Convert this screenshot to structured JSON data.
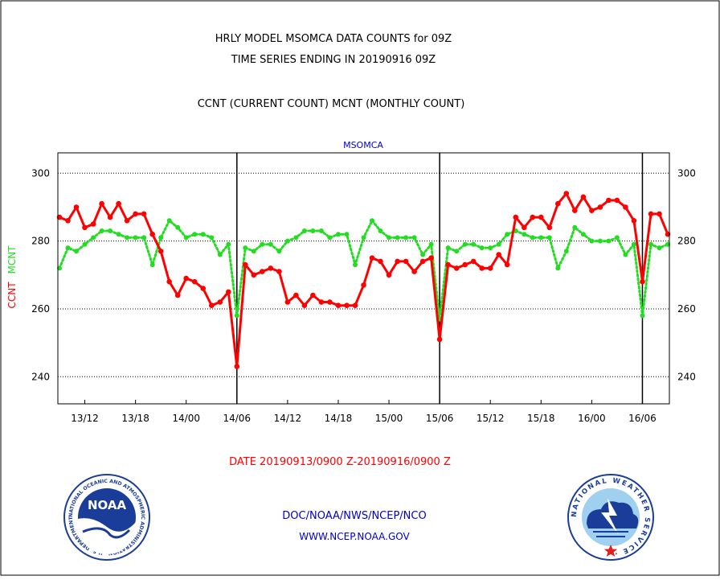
{
  "header": {
    "title_line1": "HRLY MODEL MSOMCA DATA COUNTS for 09Z",
    "title_line2": "TIME SERIES ENDING IN 20190916 09Z",
    "subtitle": "CCNT (CURRENT COUNT) MCNT (MONTHLY COUNT)"
  },
  "footer": {
    "date_range": "DATE 20190913/0900 Z-20190916/0900 Z",
    "org_line": "DOC/NOAA/NWS/NCEP/NCO",
    "url": "WWW.NCEP.NOAA.GOV",
    "noaa_logo_text": "NOAA",
    "noaa_ring_text": "NATIONAL OCEANIC AND ATMOSPHERIC ADMINISTRATION · U.S. DEPARTMENT OF COMMERCE ·",
    "nws_ring_text": "NATIONAL WEATHER SERVICE ·"
  },
  "colors": {
    "ccnt": "#ff0000",
    "mcnt": "#22dd22",
    "title": "#000000",
    "plot_label": "#0000cc",
    "date": "#ff0000",
    "footer_text": "#0000cc",
    "frame": "#000000"
  },
  "chart_data": {
    "type": "line",
    "plot_title": "MSOMCA",
    "ylabel_ccnt": "CCNT",
    "ylabel_mcnt": "MCNT",
    "ylim": [
      232,
      306
    ],
    "yticks": [
      240,
      260,
      280,
      300
    ],
    "ytick_labels": [
      "240",
      "260",
      "280",
      "300"
    ],
    "grid": true,
    "x_unit": "hours from 20190913/0900Z",
    "xlim": [
      0,
      72
    ],
    "xticks": [
      3,
      9,
      15,
      21,
      27,
      33,
      39,
      45,
      51,
      57,
      63,
      69
    ],
    "xtick_labels": [
      "13/12",
      "13/18",
      "14/00",
      "14/06",
      "14/12",
      "14/18",
      "15/00",
      "15/06",
      "15/12",
      "15/18",
      "16/00",
      "16/06"
    ],
    "day_boundaries": [
      21,
      45,
      69
    ],
    "series": [
      {
        "name": "CCNT",
        "style": "solid",
        "values": [
          287,
          286,
          290,
          284,
          285,
          291,
          287,
          291,
          286,
          288,
          288,
          282,
          277,
          268,
          264,
          269,
          268,
          266,
          261,
          262,
          265,
          243,
          273,
          270,
          271,
          272,
          271,
          262,
          264,
          261,
          264,
          262,
          262,
          261,
          261,
          261,
          267,
          275,
          274,
          270,
          274,
          274,
          271,
          274,
          275,
          251,
          273,
          272,
          273,
          274,
          272,
          272,
          276,
          273,
          287,
          284,
          287,
          287,
          284,
          291,
          294,
          289,
          293,
          289,
          290,
          292,
          292,
          290,
          286,
          268,
          288,
          288,
          282
        ]
      },
      {
        "name": "MCNT",
        "style": "dotted",
        "values": [
          272,
          278,
          277,
          279,
          281,
          283,
          283,
          282,
          281,
          281,
          281,
          273,
          281,
          286,
          284,
          281,
          282,
          282,
          281,
          276,
          279,
          258,
          278,
          277,
          279,
          279,
          277,
          280,
          281,
          283,
          283,
          283,
          281,
          282,
          282,
          273,
          281,
          286,
          283,
          281,
          281,
          281,
          281,
          276,
          279,
          257,
          278,
          277,
          279,
          279,
          278,
          278,
          279,
          282,
          283,
          282,
          281,
          281,
          281,
          272,
          277,
          284,
          282,
          280,
          280,
          280,
          281,
          276,
          279,
          258,
          279,
          278,
          279
        ]
      }
    ]
  }
}
